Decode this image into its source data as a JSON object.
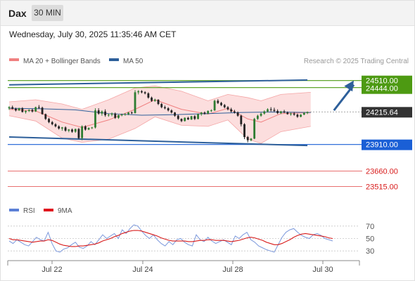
{
  "header": {
    "instrument": "Dax",
    "timeframe": "30 MIN",
    "datetime": "Wednesday, July 30, 2025 11:35:46 AM CET"
  },
  "legend": {
    "items": [
      {
        "label": "MA 20 + Bollinger Bands",
        "color": "#f08080"
      },
      {
        "label": "MA 50",
        "color": "#2d5f9a"
      }
    ],
    "credit": "Research © 2025 Trading Central"
  },
  "rsi_legend": {
    "items": [
      {
        "label": "RSI",
        "color": "#5b7fd6"
      },
      {
        "label": "9MA",
        "color": "#e0141c"
      }
    ]
  },
  "colors": {
    "bullish": "#2e7d32",
    "bearish": "#222222",
    "resistance": "#4d9a12",
    "support": "#1a5fd6",
    "target_level": "#e65c5c",
    "ma50": "#2d5f9a",
    "ma20": "#f08080",
    "band": "#fbd3d3"
  },
  "chart_data": [
    {
      "type": "candlestick",
      "x_ticks": [
        "Jul 22",
        "Jul 24",
        "Jul 28",
        "Jul 30"
      ],
      "y_range": [
        23400,
        24620
      ],
      "last_price": "24215.64",
      "levels": [
        {
          "label": "24510.00",
          "value": 24510,
          "kind": "resistance"
        },
        {
          "label": "24444.00",
          "value": 24444,
          "kind": "resistance"
        },
        {
          "label": "24215.64",
          "value": 24215.64,
          "kind": "last"
        },
        {
          "label": "23910.00",
          "value": 23910,
          "kind": "support"
        },
        {
          "label": "23660.00",
          "value": 23660,
          "kind": "target"
        },
        {
          "label": "23515.00",
          "value": 23515,
          "kind": "target"
        }
      ],
      "trendlines": [
        {
          "name": "upper-channel",
          "points": [
            [
              0,
              24470
            ],
            [
              90,
              24515
            ]
          ]
        },
        {
          "name": "lower-channel",
          "points": [
            [
              0,
              23980
            ],
            [
              90,
              23900
            ]
          ]
        }
      ],
      "forecast_arrow": {
        "from": [
          98,
          24230
        ],
        "to": [
          104,
          24510
        ]
      },
      "ohlc": [
        [
          24250,
          24270,
          24235,
          24260
        ],
        [
          24260,
          24275,
          24240,
          24245
        ],
        [
          24245,
          24255,
          24220,
          24230
        ],
        [
          24230,
          24255,
          24225,
          24250
        ],
        [
          24250,
          24260,
          24210,
          24215
        ],
        [
          24215,
          24230,
          24200,
          24225
        ],
        [
          24225,
          24240,
          24215,
          24235
        ],
        [
          24235,
          24245,
          24210,
          24220
        ],
        [
          24220,
          24265,
          24215,
          24260
        ],
        [
          24260,
          24280,
          24245,
          24255
        ],
        [
          24255,
          24265,
          24190,
          24195
        ],
        [
          24195,
          24200,
          24140,
          24150
        ],
        [
          24150,
          24160,
          24110,
          24120
        ],
        [
          24120,
          24130,
          24090,
          24100
        ],
        [
          24100,
          24110,
          24070,
          24080
        ],
        [
          24080,
          24090,
          24050,
          24060
        ],
        [
          24060,
          24075,
          24040,
          24070
        ],
        [
          24070,
          24080,
          24030,
          24040
        ],
        [
          24040,
          24055,
          24025,
          24050
        ],
        [
          24050,
          24060,
          24020,
          24030
        ],
        [
          24030,
          24060,
          24020,
          24055
        ],
        [
          24055,
          24065,
          23960,
          23970
        ],
        [
          23970,
          24090,
          23950,
          24080
        ],
        [
          24080,
          24090,
          24040,
          24050
        ],
        [
          24050,
          24070,
          24045,
          24065
        ],
        [
          24065,
          24075,
          24055,
          24070
        ],
        [
          24070,
          24250,
          24060,
          24230
        ],
        [
          24230,
          24250,
          24190,
          24200
        ],
        [
          24200,
          24230,
          24180,
          24220
        ],
        [
          24220,
          24240,
          24170,
          24185
        ],
        [
          24185,
          24200,
          24170,
          24190
        ],
        [
          24190,
          24210,
          24175,
          24200
        ],
        [
          24200,
          24210,
          24150,
          24160
        ],
        [
          24160,
          24190,
          24150,
          24185
        ],
        [
          24185,
          24200,
          24175,
          24190
        ],
        [
          24190,
          24205,
          24180,
          24195
        ],
        [
          24195,
          24215,
          24185,
          24210
        ],
        [
          24210,
          24220,
          24195,
          24205
        ],
        [
          24205,
          24420,
          24200,
          24400
        ],
        [
          24400,
          24420,
          24380,
          24410
        ],
        [
          24410,
          24420,
          24390,
          24400
        ],
        [
          24400,
          24410,
          24380,
          24390
        ],
        [
          24390,
          24400,
          24340,
          24350
        ],
        [
          24350,
          24360,
          24310,
          24320
        ],
        [
          24320,
          24340,
          24310,
          24330
        ],
        [
          24330,
          24335,
          24280,
          24290
        ],
        [
          24290,
          24300,
          24250,
          24260
        ],
        [
          24260,
          24275,
          24240,
          24250
        ],
        [
          24250,
          24260,
          24220,
          24230
        ],
        [
          24230,
          24240,
          24200,
          24210
        ],
        [
          24210,
          24215,
          24170,
          24180
        ],
        [
          24180,
          24190,
          24140,
          24150
        ],
        [
          24150,
          24155,
          24120,
          24130
        ],
        [
          24130,
          24165,
          24125,
          24160
        ],
        [
          24160,
          24170,
          24140,
          24145
        ],
        [
          24145,
          24180,
          24140,
          24175
        ],
        [
          24175,
          24185,
          24140,
          24150
        ],
        [
          24150,
          24200,
          24145,
          24195
        ],
        [
          24195,
          24215,
          24180,
          24210
        ],
        [
          24210,
          24220,
          24190,
          24200
        ],
        [
          24200,
          24230,
          24195,
          24225
        ],
        [
          24225,
          24240,
          24215,
          24230
        ],
        [
          24230,
          24330,
          24225,
          24320
        ],
        [
          24320,
          24335,
          24290,
          24300
        ],
        [
          24300,
          24310,
          24270,
          24280
        ],
        [
          24280,
          24290,
          24250,
          24260
        ],
        [
          24260,
          24270,
          24230,
          24240
        ],
        [
          24240,
          24255,
          24210,
          24220
        ],
        [
          24220,
          24235,
          24200,
          24210
        ],
        [
          24210,
          24220,
          24170,
          24180
        ],
        [
          24180,
          24190,
          24080,
          24100
        ],
        [
          24100,
          24110,
          23960,
          23980
        ],
        [
          23980,
          23990,
          23930,
          23950
        ],
        [
          23950,
          23970,
          23940,
          23965
        ],
        [
          23965,
          24160,
          23960,
          24150
        ],
        [
          24150,
          24190,
          24140,
          24180
        ],
        [
          24180,
          24210,
          24170,
          24200
        ],
        [
          24200,
          24230,
          24190,
          24220
        ],
        [
          24220,
          24250,
          24210,
          24240
        ],
        [
          24240,
          24260,
          24220,
          24235
        ],
        [
          24235,
          24255,
          24215,
          24225
        ],
        [
          24225,
          24240,
          24195,
          24205
        ],
        [
          24205,
          24225,
          24195,
          24220
        ],
        [
          24220,
          24235,
          24205,
          24210
        ],
        [
          24210,
          24220,
          24190,
          24195
        ],
        [
          24195,
          24210,
          24180,
          24200
        ],
        [
          24200,
          24215,
          24180,
          24190
        ],
        [
          24190,
          24200,
          24160,
          24170
        ],
        [
          24170,
          24195,
          24165,
          24190
        ],
        [
          24190,
          24215,
          24185,
          24205
        ],
        [
          24205,
          24220,
          24195,
          24215
        ]
      ],
      "ma50": [
        [
          0,
          24250
        ],
        [
          10,
          24245
        ],
        [
          20,
          24235
        ],
        [
          30,
          24200
        ],
        [
          40,
          24185
        ],
        [
          50,
          24190
        ],
        [
          60,
          24200
        ],
        [
          70,
          24210
        ],
        [
          80,
          24215
        ],
        [
          91,
          24210
        ]
      ],
      "ma20": [
        [
          0,
          24240
        ],
        [
          8,
          24225
        ],
        [
          16,
          24120
        ],
        [
          22,
          24070
        ],
        [
          30,
          24140
        ],
        [
          38,
          24240
        ],
        [
          44,
          24330
        ],
        [
          52,
          24240
        ],
        [
          60,
          24195
        ],
        [
          66,
          24250
        ],
        [
          72,
          24150
        ],
        [
          76,
          24120
        ],
        [
          82,
          24200
        ],
        [
          91,
          24210
        ]
      ],
      "bollinger_upper": [
        [
          0,
          24310
        ],
        [
          8,
          24330
        ],
        [
          16,
          24290
        ],
        [
          22,
          24240
        ],
        [
          30,
          24330
        ],
        [
          38,
          24440
        ],
        [
          44,
          24460
        ],
        [
          52,
          24410
        ],
        [
          60,
          24320
        ],
        [
          66,
          24380
        ],
        [
          72,
          24350
        ],
        [
          76,
          24320
        ],
        [
          82,
          24380
        ],
        [
          91,
          24400
        ]
      ],
      "bollinger_lower": [
        [
          0,
          24180
        ],
        [
          8,
          24130
        ],
        [
          16,
          23970
        ],
        [
          22,
          23930
        ],
        [
          30,
          23960
        ],
        [
          38,
          24060
        ],
        [
          44,
          24170
        ],
        [
          52,
          24090
        ],
        [
          60,
          24080
        ],
        [
          66,
          24140
        ],
        [
          72,
          23960
        ],
        [
          76,
          23920
        ],
        [
          82,
          24030
        ],
        [
          91,
          24080
        ]
      ]
    },
    {
      "type": "line",
      "title": "RSI",
      "y_ticks": [
        "70",
        "50",
        "30"
      ],
      "y_range": [
        20,
        80
      ],
      "series": [
        {
          "name": "RSI",
          "values": [
            46,
            42,
            48,
            44,
            40,
            38,
            45,
            52,
            48,
            46,
            60,
            42,
            30,
            28,
            33,
            35,
            40,
            44,
            36,
            34,
            38,
            45,
            40,
            48,
            56,
            50,
            54,
            58,
            50,
            64,
            58,
            66,
            72,
            70,
            62,
            55,
            50,
            56,
            48,
            42,
            38,
            45,
            40,
            48,
            50,
            44,
            40,
            38,
            56,
            48,
            45,
            52,
            46,
            42,
            45,
            48,
            44,
            40,
            54,
            50,
            56,
            60,
            48,
            44,
            38,
            35,
            32,
            30,
            28,
            40,
            52,
            60,
            64,
            66,
            60,
            55,
            52,
            50,
            56,
            58,
            55,
            50,
            48,
            46
          ]
        },
        {
          "name": "9MA",
          "values": [
            50,
            48,
            48,
            47,
            46,
            45,
            44,
            45,
            46,
            46,
            48,
            47,
            44,
            41,
            39,
            38,
            37,
            37,
            38,
            38,
            39,
            40,
            41,
            43,
            46,
            48,
            50,
            53,
            55,
            58,
            60,
            62,
            63,
            63,
            62,
            60,
            58,
            56,
            54,
            51,
            49,
            47,
            46,
            46,
            46,
            46,
            45,
            45,
            46,
            47,
            47,
            48,
            48,
            47,
            47,
            47,
            46,
            45,
            46,
            47,
            49,
            51,
            52,
            51,
            49,
            47,
            44,
            42,
            40,
            40,
            42,
            45,
            48,
            52,
            55,
            57,
            58,
            57,
            56,
            55,
            54,
            53,
            51,
            50
          ]
        }
      ]
    }
  ]
}
